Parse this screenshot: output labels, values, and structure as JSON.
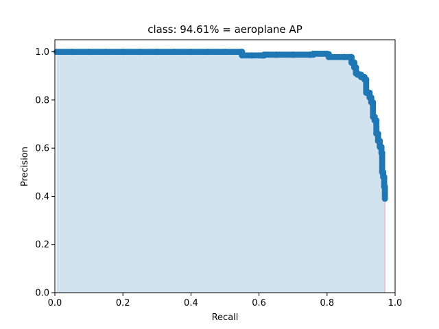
{
  "chart_data": {
    "type": "area",
    "title": "class: 94.61% = aeroplane AP",
    "xlabel": "Recall",
    "ylabel": "Precision",
    "xlim": [
      0.0,
      1.0
    ],
    "ylim": [
      0.0,
      1.05
    ],
    "xticks": [
      "0.0",
      "0.2",
      "0.4",
      "0.6",
      "0.8",
      "1.0"
    ],
    "yticks": [
      "0.0",
      "0.2",
      "0.4",
      "0.6",
      "0.8",
      "1.0"
    ],
    "grid": false,
    "colors": {
      "fill": "#d2e3f0",
      "marker": "#1f77b4",
      "edge_line": "#f2b6d0"
    },
    "series": [
      {
        "x": [
          0.005,
          0.05,
          0.1,
          0.15,
          0.2,
          0.25,
          0.3,
          0.35,
          0.4,
          0.45,
          0.5,
          0.548,
          0.55,
          0.58,
          0.61,
          0.615,
          0.65,
          0.7,
          0.75,
          0.76,
          0.8,
          0.805,
          0.85,
          0.87,
          0.872,
          0.88,
          0.885,
          0.89,
          0.9,
          0.91,
          0.915,
          0.925,
          0.93,
          0.935,
          0.94,
          0.945,
          0.95,
          0.955,
          0.96,
          0.962,
          0.965,
          0.968,
          0.97
        ],
        "y": [
          1.0,
          1.0,
          1.0,
          1.0,
          1.0,
          1.0,
          1.0,
          1.0,
          1.0,
          1.0,
          1.0,
          1.0,
          0.985,
          0.985,
          0.985,
          0.988,
          0.988,
          0.988,
          0.988,
          0.992,
          0.99,
          0.978,
          0.978,
          0.978,
          0.955,
          0.935,
          0.91,
          0.905,
          0.895,
          0.885,
          0.83,
          0.81,
          0.79,
          0.73,
          0.715,
          0.66,
          0.63,
          0.605,
          0.58,
          0.5,
          0.48,
          0.44,
          0.39
        ]
      }
    ]
  }
}
